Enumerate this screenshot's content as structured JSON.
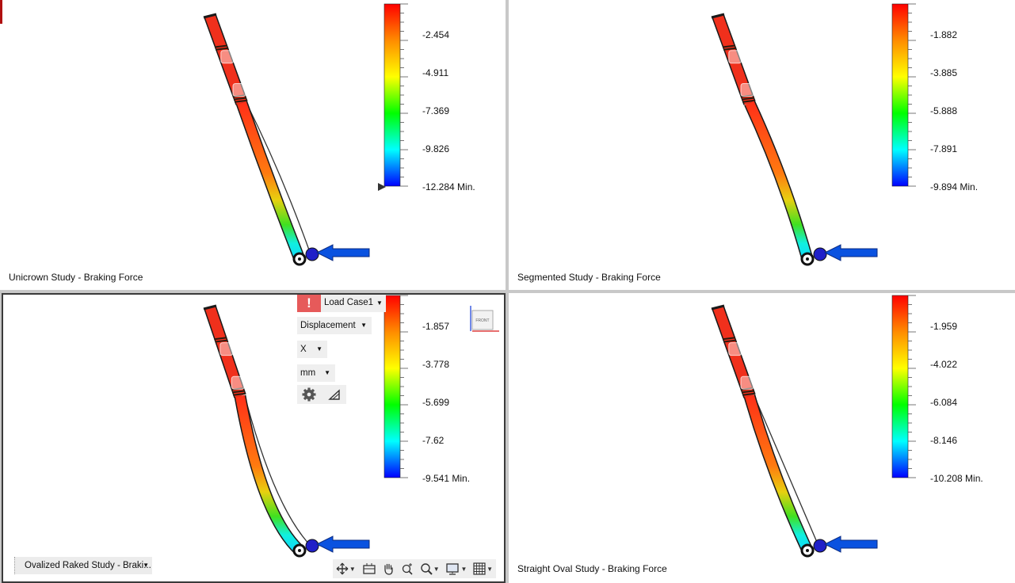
{
  "colors": {
    "legend_gradient": [
      "#ff0000",
      "#ff8c00",
      "#ffff00",
      "#00ff00",
      "#00ffff",
      "#0000ff"
    ],
    "load_arrow": "#0a52e0",
    "warning": "#e65a5a",
    "active_pane_border": "#3a3a3a"
  },
  "panes": [
    {
      "study_label": "Unicrown Study - Braking Force",
      "legend": {
        "ticks": [
          "-2.454",
          "-4.911",
          "-7.369",
          "-9.826",
          "-12.284 Min."
        ],
        "has_min_marker": true
      }
    },
    {
      "study_label": "Segmented Study - Braking Force",
      "legend": {
        "ticks": [
          "-1.882",
          "-3.885",
          "-5.888",
          "-7.891",
          "-9.894 Min."
        ],
        "has_min_marker": false
      }
    },
    {
      "study_label": "Ovalized Raked Study - Braki...",
      "legend": {
        "ticks": [
          "-1.857",
          "-3.778",
          "-5.699",
          "-7.62",
          "-9.541 Min."
        ],
        "has_min_marker": false
      },
      "active": true
    },
    {
      "study_label": "Straight Oval Study - Braking Force",
      "legend": {
        "ticks": [
          "-1.959",
          "-4.022",
          "-6.084",
          "-8.146",
          "-10.208 Min."
        ],
        "has_min_marker": false
      }
    }
  ],
  "controls": {
    "warning_symbol": "!",
    "load_case": "Load Case1",
    "result_type": "Displacement",
    "component": "X",
    "units": "mm",
    "settings_icon": "gear-icon",
    "legend_icon": "triangle-icon",
    "viewcube_label": "FRONT",
    "nav_icons": [
      "orbit-icon",
      "look-at-icon",
      "pan-hand-icon",
      "zoom-icon",
      "zoom-window-icon",
      "display-settings-icon",
      "grid-icon"
    ]
  }
}
